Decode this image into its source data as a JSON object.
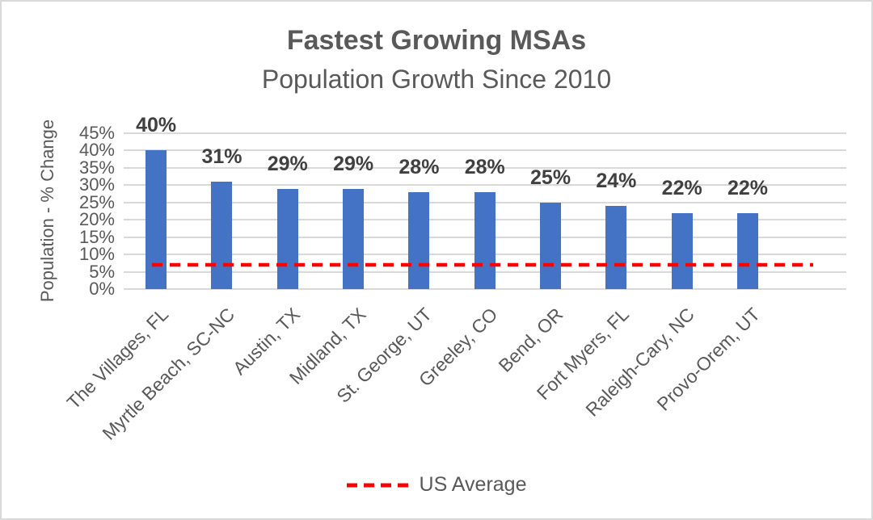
{
  "chart_data": {
    "type": "bar",
    "title": "Fastest Growing MSAs",
    "subtitle": "Population Growth Since 2010",
    "ylabel": "Population - % Change",
    "categories": [
      "The Villages, FL",
      "Myrtle Beach, SC-NC",
      "Austin, TX",
      "Midland, TX",
      "St. George, UT",
      "Greeley, CO",
      "Bend, OR",
      "Fort Myers, FL",
      "Raleigh-Cary, NC",
      "Provo-Orem, UT"
    ],
    "values": [
      40,
      31,
      29,
      29,
      28,
      28,
      25,
      24,
      22,
      22
    ],
    "bar_labels": [
      "40%",
      "31%",
      "29%",
      "29%",
      "28%",
      "28%",
      "25%",
      "24%",
      "22%",
      "22%"
    ],
    "ylim": [
      0,
      45
    ],
    "y_tick_step": 5,
    "y_tick_labels": [
      "0%",
      "5%",
      "10%",
      "15%",
      "20%",
      "25%",
      "30%",
      "35%",
      "40%",
      "45%"
    ],
    "grid": true,
    "legend_position": "bottom",
    "bar_color": "#4472C4",
    "gridline_color": "#D9D9D9",
    "text_color": "#595959",
    "data_label_color": "#404040",
    "reference_line": {
      "label": "US Average",
      "value": 7,
      "color": "#FF0000",
      "style": "dashed"
    }
  }
}
